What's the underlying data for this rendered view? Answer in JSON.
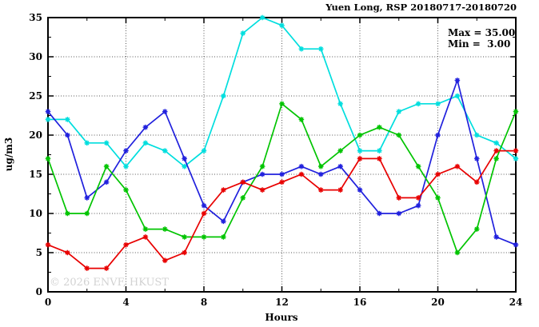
{
  "header": {
    "title": "Yuen Long, RSP 20180717-20180720"
  },
  "legend": {
    "max_label": "Max = 35.00",
    "min_label": "Min =  3.00"
  },
  "watermark": "© 2026 ENVF, HKUST",
  "chart_data": {
    "type": "line",
    "title": "Yuen Long, RSP 20180717-20180720",
    "xlabel": "Hours",
    "ylabel": "ug/m3",
    "xlim": [
      0,
      24
    ],
    "ylim": [
      0,
      35
    ],
    "x_major_ticks": [
      0,
      4,
      8,
      12,
      16,
      20,
      24
    ],
    "x_minor_ticks": [
      2,
      6,
      10,
      14,
      18,
      22
    ],
    "y_major_ticks": [
      0,
      5,
      10,
      15,
      20,
      25,
      30,
      35
    ],
    "y_minor_ticks": [
      2.5,
      7.5,
      12.5,
      17.5,
      22.5,
      27.5,
      32.5
    ],
    "grid_x_at": [
      4,
      8,
      12,
      16,
      20
    ],
    "grid_y_at": [
      5,
      10,
      15,
      20,
      25,
      30
    ],
    "legend_position": "top-right-inside",
    "stats": {
      "max": 35.0,
      "min": 3.0
    },
    "x": [
      0,
      1,
      2,
      3,
      4,
      5,
      6,
      7,
      8,
      9,
      10,
      11,
      12,
      13,
      14,
      15,
      16,
      17,
      18,
      19,
      20,
      21,
      22,
      23,
      24
    ],
    "series": [
      {
        "name": "series-cyan",
        "color": "#00dede",
        "values": [
          22,
          22,
          19,
          19,
          16,
          19,
          18,
          16,
          18,
          25,
          33,
          35,
          34,
          31,
          31,
          24,
          18,
          18,
          23,
          24,
          24,
          25,
          20,
          19,
          17
        ]
      },
      {
        "name": "series-blue",
        "color": "#2020dd",
        "values": [
          23,
          20,
          12,
          14,
          18,
          21,
          23,
          17,
          11,
          9,
          14,
          15,
          15,
          16,
          15,
          16,
          13,
          10,
          10,
          11,
          20,
          27,
          17,
          7,
          6
        ]
      },
      {
        "name": "series-green",
        "color": "#00c400",
        "values": [
          17,
          10,
          10,
          16,
          13,
          8,
          8,
          7,
          7,
          7,
          12,
          16,
          24,
          22,
          16,
          18,
          20,
          21,
          20,
          16,
          12,
          5,
          8,
          17,
          23
        ]
      },
      {
        "name": "series-red",
        "color": "#e80000",
        "values": [
          6,
          5,
          3,
          3,
          6,
          7,
          4,
          5,
          10,
          13,
          14,
          13,
          14,
          15,
          13,
          13,
          17,
          17,
          12,
          12,
          15,
          16,
          14,
          18,
          18
        ]
      }
    ]
  }
}
